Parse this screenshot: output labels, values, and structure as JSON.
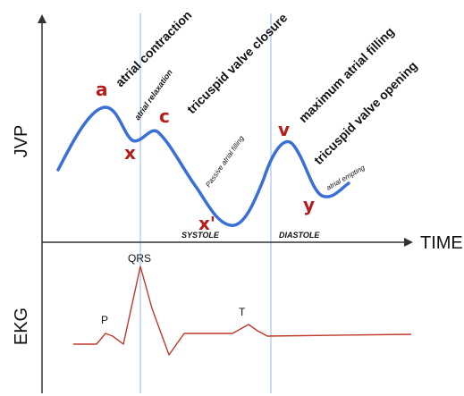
{
  "axes": {
    "jvp": "JVP",
    "ekg": "EKG",
    "time": "TIME"
  },
  "jvp_waves": {
    "a": "a",
    "x": "x",
    "c": "c",
    "x_prime": "x'",
    "v": "v",
    "y": "y"
  },
  "events": {
    "atrial_contraction": "atrial contraction",
    "tricuspid_closure": "tricuspid valve closure",
    "max_filling": "maximum atrial filling",
    "tricuspid_opening": "tricuspid valve opening"
  },
  "phases": {
    "atrial_relaxation": "atrial relaxation",
    "passive_filling": "Passive atrial filling",
    "atrial_emptying": "atrial empting",
    "systole": "SYSTOLE",
    "diastole": "DIASTOLE"
  },
  "ekg_waves": {
    "p": "P",
    "qrs": "QRS",
    "t": "T"
  },
  "colors": {
    "jvp_curve": "#3a6fd8",
    "ekg_trace": "#c0392b",
    "wave_letters": "#b71c1c",
    "marker_lines": "#a8c4e8",
    "axes": "#333333"
  }
}
